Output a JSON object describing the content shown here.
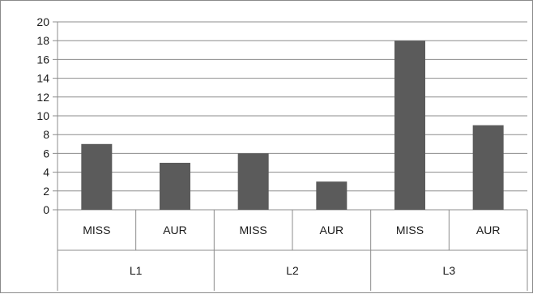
{
  "chart_data": {
    "type": "bar",
    "groups": [
      {
        "label": "L1",
        "categories": [
          "MISS",
          "AUR"
        ],
        "values": [
          7,
          5
        ]
      },
      {
        "label": "L2",
        "categories": [
          "MISS",
          "AUR"
        ],
        "values": [
          6,
          3
        ]
      },
      {
        "label": "L3",
        "categories": [
          "MISS",
          "AUR"
        ],
        "values": [
          18,
          9
        ]
      }
    ],
    "ylim": [
      0,
      20
    ],
    "yticks": [
      0,
      2,
      4,
      6,
      8,
      10,
      12,
      14,
      16,
      18,
      20
    ],
    "grid": true,
    "legend": "none",
    "bar_color": "#5b5b5b",
    "grid_color": "#8c8c8c"
  }
}
